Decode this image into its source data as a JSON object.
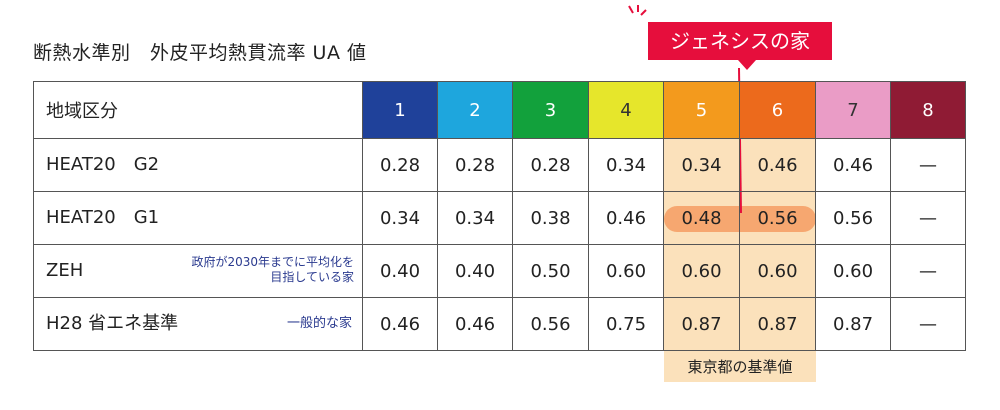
{
  "title": "断熱水準別　外皮平均熱貫流率 UA 値",
  "badge": "ジェネシスの家",
  "footer_label": "東京都の基準値",
  "header": {
    "label": "地域区分",
    "regions": [
      {
        "label": "1",
        "color": "#1f419a"
      },
      {
        "label": "2",
        "color": "#1ea6dd"
      },
      {
        "label": "3",
        "color": "#12a13c"
      },
      {
        "label": "4",
        "color": "#e6e62b"
      },
      {
        "label": "5",
        "color": "#f39a1d"
      },
      {
        "label": "6",
        "color": "#ec6a1c"
      },
      {
        "label": "7",
        "color": "#ea9cc6"
      },
      {
        "label": "8",
        "color": "#8f1b34"
      }
    ]
  },
  "rows": [
    {
      "label": "HEAT20　G2",
      "note": "",
      "values": [
        "0.28",
        "0.28",
        "0.28",
        "0.34",
        "0.34",
        "0.46",
        "0.46",
        "—"
      ]
    },
    {
      "label": "HEAT20　G1",
      "note": "",
      "values": [
        "0.34",
        "0.34",
        "0.38",
        "0.46",
        "0.48",
        "0.56",
        "0.56",
        "—"
      ]
    },
    {
      "label": "ZEH",
      "note": "政府が2030年までに平均化を\n目指している家",
      "note_lines": [
        "政府が2030年までに平均化を",
        "目指している家"
      ],
      "values": [
        "0.40",
        "0.40",
        "0.50",
        "0.60",
        "0.60",
        "0.60",
        "0.60",
        "—"
      ]
    },
    {
      "label": "H28 省エネ基準",
      "note": "一般的な家",
      "values": [
        "0.46",
        "0.46",
        "0.56",
        "0.75",
        "0.87",
        "0.87",
        "0.87",
        "—"
      ]
    }
  ]
}
